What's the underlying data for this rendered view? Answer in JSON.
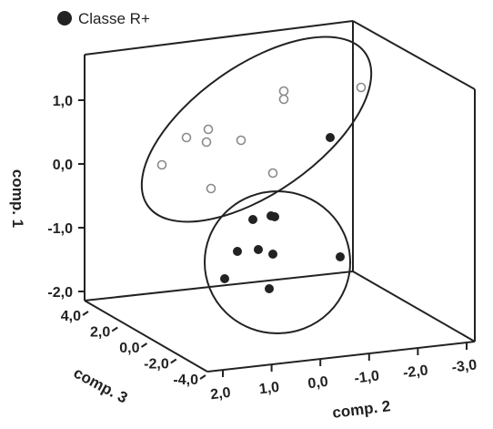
{
  "chart_data": {
    "type": "scatter",
    "projection": "3d",
    "legend": {
      "position": "top-left",
      "entries": [
        {
          "label": "Classe R+",
          "marker": "filled-circle"
        }
      ]
    },
    "axes": {
      "comp1": {
        "label": "comp. 1",
        "range": [
          -2.2,
          1.7
        ],
        "ticks": [
          "1,0",
          "0,0",
          "-1,0",
          "-2,0"
        ],
        "tick_values": [
          1.0,
          0.0,
          -1.0,
          -2.0
        ]
      },
      "comp2": {
        "label": "comp. 2",
        "range": [
          -3.0,
          2.0
        ],
        "ticks": [
          "2,0",
          "1,0",
          "0,0",
          "-1,0",
          "-2,0",
          "-3,0"
        ],
        "tick_values": [
          2.0,
          1.0,
          0.0,
          -1.0,
          -2.0,
          -3.0
        ]
      },
      "comp3": {
        "label": "comp. 3",
        "range": [
          -4.0,
          4.0
        ],
        "ticks": [
          "4,0",
          "2,0",
          "0,0",
          "-2,0",
          "-4,0"
        ],
        "tick_values": [
          4.0,
          2.0,
          0.0,
          -2.0,
          -4.0
        ]
      }
    },
    "series": [
      {
        "marker": "open-circle",
        "points": [
          {
            "c2": 1.2,
            "c3": 3.5,
            "c1": 0.2
          },
          {
            "c2": 0.5,
            "c3": 3.0,
            "c1": 0.6
          },
          {
            "c2": 0.3,
            "c3": 2.0,
            "c1": 0.7
          },
          {
            "c2": 0.4,
            "c3": 2.4,
            "c1": 0.5
          },
          {
            "c2": -0.2,
            "c3": 2.0,
            "c1": 0.5
          },
          {
            "c2": -1.0,
            "c3": -1.0,
            "c1": 1.2
          },
          {
            "c2": -1.0,
            "c3": -1.0,
            "c1": 1.1
          },
          {
            "c2": -2.8,
            "c3": -1.5,
            "c1": 1.5
          },
          {
            "c2": 0.3,
            "c3": 0.8,
            "c1": -0.3
          },
          {
            "c2": -0.6,
            "c3": 0.5,
            "c1": 0.2
          }
        ]
      },
      {
        "name": "Classe R+",
        "marker": "filled-circle",
        "points": [
          {
            "c2": 0.2,
            "c3": -0.5,
            "c1": 0.3
          },
          {
            "c2": 1.0,
            "c3": 0.0,
            "c1": -0.9
          },
          {
            "c2": 0.5,
            "c3": 0.0,
            "c1": -0.9
          },
          {
            "c2": 0.4,
            "c3": 0.0,
            "c1": -0.9
          },
          {
            "c2": 1.2,
            "c3": 0.0,
            "c1": -1.4
          },
          {
            "c2": 0.9,
            "c3": 0.0,
            "c1": -1.4
          },
          {
            "c2": 0.6,
            "c3": 0.0,
            "c1": -1.4
          },
          {
            "c2": -0.9,
            "c3": -1.0,
            "c1": -1.5
          },
          {
            "c2": 1.4,
            "c3": 0.5,
            "c1": -1.8
          },
          {
            "c2": 0.2,
            "c3": -1.0,
            "c1": -1.7
          }
        ]
      }
    ],
    "grid": false
  }
}
